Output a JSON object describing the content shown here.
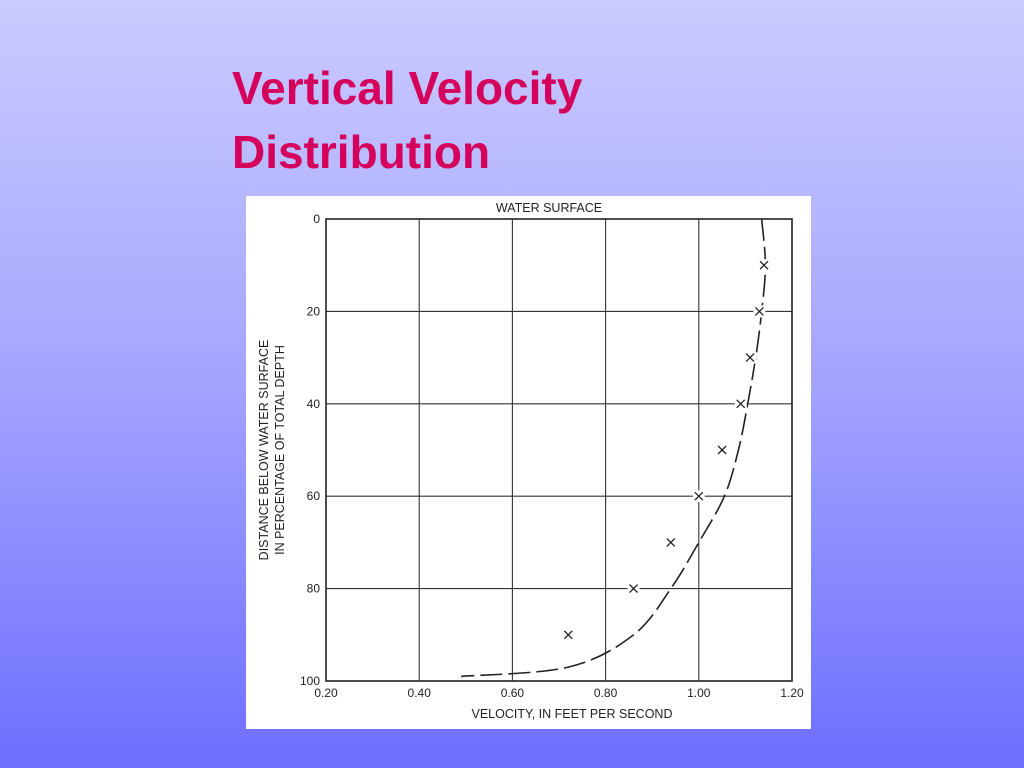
{
  "slide": {
    "title_line1": "Vertical Velocity",
    "title_line2": "Distribution"
  },
  "chart_data": {
    "type": "line",
    "top_label": "WATER SURFACE",
    "xlabel": "VELOCITY, IN FEET PER SECOND",
    "ylabel_line1": "DISTANCE BELOW WATER SURFACE",
    "ylabel_line2": "IN PERCENTAGE OF TOTAL DEPTH",
    "xlim": [
      0.2,
      1.2
    ],
    "ylim": [
      0,
      100
    ],
    "y_inverted": true,
    "grid": true,
    "x_ticks": [
      0.2,
      0.4,
      0.6,
      0.8,
      1.0,
      1.2
    ],
    "x_tick_labels": [
      "0.20",
      "0.40",
      "0.60",
      "0.80",
      "1.00",
      "1.20"
    ],
    "y_ticks": [
      0,
      20,
      40,
      60,
      80,
      100
    ],
    "y_tick_labels": [
      "0",
      "20",
      "40",
      "60",
      "80",
      "100"
    ],
    "points": {
      "marker": "x",
      "x": [
        1.14,
        1.13,
        1.11,
        1.09,
        1.05,
        1.0,
        0.94,
        0.86,
        0.72
      ],
      "y": [
        10,
        20,
        30,
        40,
        50,
        60,
        70,
        80,
        90
      ]
    },
    "curve": {
      "style": "dashed",
      "x": [
        1.135,
        1.143,
        1.135,
        1.122,
        1.105,
        1.085,
        1.055,
        1.0,
        0.94,
        0.86,
        0.72,
        0.49
      ],
      "y": [
        0,
        10,
        20,
        30,
        40,
        50,
        60,
        70,
        80,
        90,
        97,
        99
      ]
    },
    "colors": {
      "line": "#222222",
      "grid": "#333333"
    }
  }
}
